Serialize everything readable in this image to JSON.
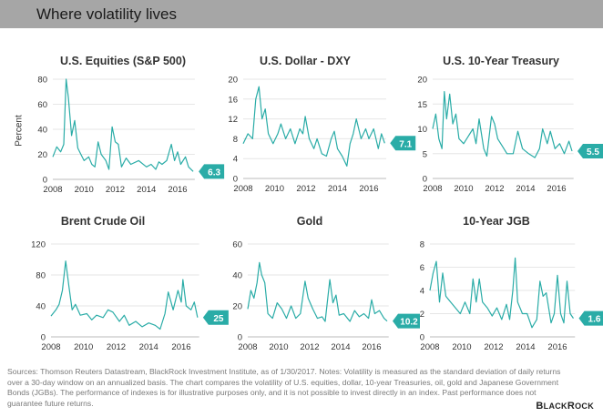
{
  "header": {
    "title": "Where volatility lives"
  },
  "y_axis_label": "Percent",
  "footer": {
    "note": "Sources: Thomson Reuters Datastream, BlackRock Investment Institute, as of 1/30/2017. Notes: Volatility is measured as the standard deviation of daily returns over a 30-day window on an annualized basis. The chart compares the volatility of U.S. equities, dollar, 10-year Treasuries, oil, gold and Japanese Government Bonds (JGBs). The performance of indexes is for illustrative purposes only, and it is not possible to invest directly in an index. Past performance does not guarantee future returns."
  },
  "logo": "BlackRock",
  "colors": {
    "line": "#2aaca7",
    "callout": "#2aaca7",
    "header": "#a6a6a6",
    "grid": "#e6e6e6"
  },
  "chart_data": [
    {
      "type": "line",
      "title": "U.S. Equities (S&P 500)",
      "ylabel": "Percent",
      "ylim": [
        0,
        80
      ],
      "yticks": [
        0,
        20,
        40,
        60,
        80
      ],
      "xticks": [
        2008,
        2010,
        2012,
        2014,
        2016
      ],
      "grid": true,
      "last_value_label": "6.3",
      "points": [
        [
          2008,
          18
        ],
        [
          2008.25,
          26
        ],
        [
          2008.5,
          22
        ],
        [
          2008.7,
          28
        ],
        [
          2008.85,
          80
        ],
        [
          2009.0,
          65
        ],
        [
          2009.2,
          35
        ],
        [
          2009.4,
          47
        ],
        [
          2009.6,
          25
        ],
        [
          2009.8,
          20
        ],
        [
          2010.0,
          15
        ],
        [
          2010.3,
          18
        ],
        [
          2010.5,
          12
        ],
        [
          2010.7,
          10
        ],
        [
          2010.9,
          30
        ],
        [
          2011.1,
          20
        ],
        [
          2011.4,
          15
        ],
        [
          2011.6,
          8
        ],
        [
          2011.8,
          42
        ],
        [
          2012.0,
          30
        ],
        [
          2012.2,
          28
        ],
        [
          2012.4,
          10
        ],
        [
          2012.7,
          17
        ],
        [
          2013,
          12
        ],
        [
          2013.5,
          15
        ],
        [
          2014,
          10
        ],
        [
          2014.3,
          12
        ],
        [
          2014.6,
          8
        ],
        [
          2014.8,
          14
        ],
        [
          2015,
          12
        ],
        [
          2015.3,
          15
        ],
        [
          2015.6,
          28
        ],
        [
          2015.8,
          15
        ],
        [
          2016.0,
          22
        ],
        [
          2016.2,
          12
        ],
        [
          2016.5,
          18
        ],
        [
          2016.7,
          10
        ],
        [
          2017.0,
          6.3
        ]
      ]
    },
    {
      "type": "line",
      "title": "U.S. Dollar - DXY",
      "ylim": [
        0,
        20
      ],
      "yticks": [
        0,
        4,
        8,
        12,
        16,
        20
      ],
      "xticks": [
        2008,
        2010,
        2012,
        2014,
        2016
      ],
      "grid": true,
      "last_value_label": "7.1",
      "points": [
        [
          2008,
          7
        ],
        [
          2008.3,
          9
        ],
        [
          2008.6,
          8
        ],
        [
          2008.8,
          16
        ],
        [
          2009.0,
          18.5
        ],
        [
          2009.2,
          12
        ],
        [
          2009.4,
          14
        ],
        [
          2009.6,
          9
        ],
        [
          2009.9,
          7
        ],
        [
          2010.2,
          9
        ],
        [
          2010.4,
          11
        ],
        [
          2010.7,
          8
        ],
        [
          2011,
          10
        ],
        [
          2011.3,
          7
        ],
        [
          2011.6,
          10
        ],
        [
          2011.8,
          9
        ],
        [
          2011.95,
          12.5
        ],
        [
          2012.2,
          8
        ],
        [
          2012.5,
          6
        ],
        [
          2012.7,
          8
        ],
        [
          2013,
          5
        ],
        [
          2013.3,
          4.5
        ],
        [
          2013.6,
          8
        ],
        [
          2013.8,
          9.5
        ],
        [
          2014,
          6
        ],
        [
          2014.3,
          4.5
        ],
        [
          2014.6,
          2.5
        ],
        [
          2014.8,
          7
        ],
        [
          2015.0,
          9
        ],
        [
          2015.2,
          12
        ],
        [
          2015.5,
          8
        ],
        [
          2015.8,
          10
        ],
        [
          2016,
          8
        ],
        [
          2016.3,
          10
        ],
        [
          2016.6,
          6
        ],
        [
          2016.8,
          9
        ],
        [
          2017.0,
          7.1
        ]
      ]
    },
    {
      "type": "line",
      "title": "U.S. 10-Year Treasury",
      "ylim": [
        0,
        20
      ],
      "yticks": [
        0,
        5,
        10,
        15,
        20
      ],
      "xticks": [
        2008,
        2010,
        2012,
        2014,
        2016
      ],
      "grid": true,
      "last_value_label": "5.5",
      "points": [
        [
          2008,
          10
        ],
        [
          2008.2,
          13
        ],
        [
          2008.4,
          8
        ],
        [
          2008.6,
          6
        ],
        [
          2008.75,
          17.5
        ],
        [
          2008.9,
          12
        ],
        [
          2009.1,
          17
        ],
        [
          2009.3,
          11
        ],
        [
          2009.5,
          13
        ],
        [
          2009.7,
          8
        ],
        [
          2010,
          7
        ],
        [
          2010.3,
          8.5
        ],
        [
          2010.6,
          10
        ],
        [
          2010.8,
          7
        ],
        [
          2011,
          12
        ],
        [
          2011.3,
          6
        ],
        [
          2011.5,
          4.5
        ],
        [
          2011.8,
          12.5
        ],
        [
          2012,
          11
        ],
        [
          2012.2,
          8
        ],
        [
          2012.5,
          6.5
        ],
        [
          2012.8,
          5
        ],
        [
          2013.2,
          5
        ],
        [
          2013.5,
          9.5
        ],
        [
          2013.8,
          6
        ],
        [
          2014.2,
          5
        ],
        [
          2014.6,
          4.2
        ],
        [
          2014.9,
          6
        ],
        [
          2015.1,
          10
        ],
        [
          2015.4,
          7
        ],
        [
          2015.6,
          9.5
        ],
        [
          2015.9,
          6
        ],
        [
          2016.2,
          7
        ],
        [
          2016.5,
          5
        ],
        [
          2016.8,
          7.5
        ],
        [
          2017,
          5.5
        ]
      ]
    },
    {
      "type": "line",
      "title": "Brent Crude Oil",
      "ylim": [
        0,
        120
      ],
      "yticks": [
        0,
        40,
        80,
        120
      ],
      "xticks": [
        2008,
        2010,
        2012,
        2014,
        2016
      ],
      "grid": true,
      "last_value_label": "25",
      "points": [
        [
          2008,
          27
        ],
        [
          2008.3,
          35
        ],
        [
          2008.5,
          42
        ],
        [
          2008.7,
          60
        ],
        [
          2008.9,
          98
        ],
        [
          2009.1,
          65
        ],
        [
          2009.3,
          35
        ],
        [
          2009.5,
          42
        ],
        [
          2009.8,
          28
        ],
        [
          2010.2,
          30
        ],
        [
          2010.5,
          22
        ],
        [
          2010.8,
          28
        ],
        [
          2011.2,
          25
        ],
        [
          2011.5,
          35
        ],
        [
          2011.8,
          32
        ],
        [
          2012.2,
          20
        ],
        [
          2012.5,
          28
        ],
        [
          2012.8,
          15
        ],
        [
          2013.2,
          20
        ],
        [
          2013.6,
          13
        ],
        [
          2014,
          18
        ],
        [
          2014.4,
          15
        ],
        [
          2014.7,
          10
        ],
        [
          2015,
          30
        ],
        [
          2015.2,
          58
        ],
        [
          2015.5,
          35
        ],
        [
          2015.8,
          60
        ],
        [
          2016,
          45
        ],
        [
          2016.1,
          74
        ],
        [
          2016.3,
          40
        ],
        [
          2016.6,
          35
        ],
        [
          2016.8,
          45
        ],
        [
          2017,
          25
        ]
      ]
    },
    {
      "type": "line",
      "title": "Gold",
      "ylim": [
        0,
        60
      ],
      "yticks": [
        0,
        20,
        40,
        60
      ],
      "xticks": [
        2008,
        2010,
        2012,
        2014,
        2016
      ],
      "grid": true,
      "last_value_label": "10.2",
      "points": [
        [
          2008,
          18
        ],
        [
          2008.2,
          30
        ],
        [
          2008.4,
          25
        ],
        [
          2008.6,
          35
        ],
        [
          2008.75,
          48
        ],
        [
          2008.9,
          40
        ],
        [
          2009.1,
          35
        ],
        [
          2009.3,
          15
        ],
        [
          2009.6,
          12
        ],
        [
          2009.9,
          22
        ],
        [
          2010.2,
          18
        ],
        [
          2010.5,
          12
        ],
        [
          2010.8,
          20
        ],
        [
          2011.1,
          12
        ],
        [
          2011.4,
          15
        ],
        [
          2011.7,
          36
        ],
        [
          2011.9,
          25
        ],
        [
          2012.2,
          18
        ],
        [
          2012.5,
          12
        ],
        [
          2012.8,
          13
        ],
        [
          2013,
          10
        ],
        [
          2013.3,
          37
        ],
        [
          2013.5,
          22
        ],
        [
          2013.7,
          27
        ],
        [
          2013.9,
          14
        ],
        [
          2014.2,
          15
        ],
        [
          2014.6,
          10
        ],
        [
          2014.9,
          17
        ],
        [
          2015.2,
          13
        ],
        [
          2015.5,
          15
        ],
        [
          2015.8,
          12
        ],
        [
          2016,
          24
        ],
        [
          2016.2,
          15
        ],
        [
          2016.5,
          17
        ],
        [
          2016.8,
          12
        ],
        [
          2017,
          10.2
        ]
      ]
    },
    {
      "type": "line",
      "title": "10-Year JGB",
      "ylim": [
        0,
        8
      ],
      "yticks": [
        0,
        2,
        4,
        6,
        8
      ],
      "xticks": [
        2008,
        2010,
        2012,
        2014,
        2016
      ],
      "grid": true,
      "last_value_label": "1.6",
      "points": [
        [
          2008,
          4
        ],
        [
          2008.2,
          5.5
        ],
        [
          2008.4,
          6.5
        ],
        [
          2008.6,
          3
        ],
        [
          2008.8,
          5.5
        ],
        [
          2009,
          3.5
        ],
        [
          2009.3,
          3
        ],
        [
          2009.6,
          2.5
        ],
        [
          2009.9,
          2
        ],
        [
          2010.2,
          3
        ],
        [
          2010.5,
          2
        ],
        [
          2010.7,
          5
        ],
        [
          2010.9,
          3
        ],
        [
          2011.1,
          5
        ],
        [
          2011.3,
          3
        ],
        [
          2011.6,
          2.5
        ],
        [
          2011.9,
          1.8
        ],
        [
          2012.2,
          2.5
        ],
        [
          2012.5,
          1.5
        ],
        [
          2012.8,
          2.8
        ],
        [
          2013,
          1.5
        ],
        [
          2013.2,
          4
        ],
        [
          2013.35,
          6.8
        ],
        [
          2013.5,
          3
        ],
        [
          2013.8,
          2
        ],
        [
          2014.1,
          2
        ],
        [
          2014.4,
          0.8
        ],
        [
          2014.7,
          1.5
        ],
        [
          2014.9,
          4.8
        ],
        [
          2015.1,
          3.5
        ],
        [
          2015.3,
          3.8
        ],
        [
          2015.6,
          1.2
        ],
        [
          2015.8,
          2
        ],
        [
          2016.0,
          5.3
        ],
        [
          2016.2,
          2
        ],
        [
          2016.4,
          1.2
        ],
        [
          2016.6,
          4.8
        ],
        [
          2016.8,
          2
        ],
        [
          2017,
          1.6
        ]
      ]
    }
  ]
}
